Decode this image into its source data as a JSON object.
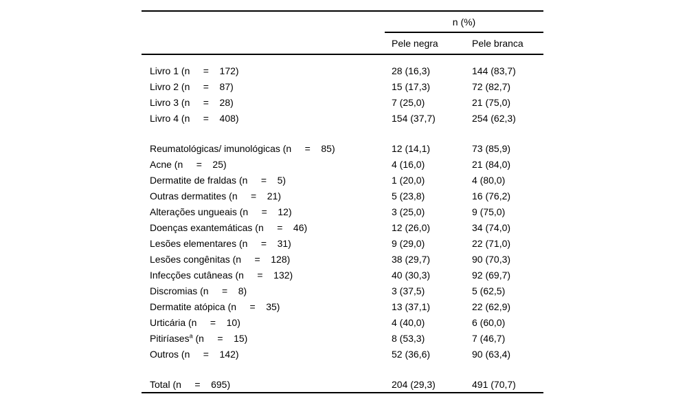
{
  "table": {
    "group_header": "n (%)",
    "columns": [
      "Pele negra",
      "Pele branca"
    ],
    "rows": [
      {
        "pre": "Livro 1 (n     =    172)",
        "sup": "",
        "post": "",
        "negra": "28 (16,3)",
        "branca": "144 (83,7)"
      },
      {
        "pre": "Livro 2 (n     =    87)",
        "sup": "",
        "post": "",
        "negra": "15 (17,3)",
        "branca": "72 (82,7)"
      },
      {
        "pre": "Livro 3 (n     =    28)",
        "sup": "",
        "post": "",
        "negra": "7 (25,0)",
        "branca": "21 (75,0)"
      },
      {
        "pre": "Livro 4 (n     =    408)",
        "sup": "",
        "post": "",
        "negra": "154 (37,7)",
        "branca": "254 (62,3)"
      },
      {
        "spacer": true
      },
      {
        "pre": "Reumatológicas/ imunológicas (n     =    85)",
        "sup": "",
        "post": "",
        "negra": "12 (14,1)",
        "branca": "73 (85,9)"
      },
      {
        "pre": "Acne (n     =    25)",
        "sup": "",
        "post": "",
        "negra": "4 (16,0)",
        "branca": "21 (84,0)"
      },
      {
        "pre": "Dermatite de fraldas (n     =    5)",
        "sup": "",
        "post": "",
        "negra": "1 (20,0)",
        "branca": "4 (80,0)"
      },
      {
        "pre": "Outras dermatites (n     =    21)",
        "sup": "",
        "post": "",
        "negra": "5 (23,8)",
        "branca": "16 (76,2)"
      },
      {
        "pre": "Alterações ungueais (n     =    12)",
        "sup": "",
        "post": "",
        "negra": "3 (25,0)",
        "branca": "9 (75,0)"
      },
      {
        "pre": "Doenças exantemáticas (n     =    46)",
        "sup": "",
        "post": "",
        "negra": "12 (26,0)",
        "branca": "34 (74,0)"
      },
      {
        "pre": "Lesões elementares (n     =    31)",
        "sup": "",
        "post": "",
        "negra": "9 (29,0)",
        "branca": "22 (71,0)"
      },
      {
        "pre": "Lesões congênitas (n     =    128)",
        "sup": "",
        "post": "",
        "negra": "38 (29,7)",
        "branca": "90 (70,3)"
      },
      {
        "pre": "Infecções cutâneas (n     =    132)",
        "sup": "",
        "post": "",
        "negra": "40 (30,3)",
        "branca": "92 (69,7)"
      },
      {
        "pre": "Discromias (n     =    8)",
        "sup": "",
        "post": "",
        "negra": "3 (37,5)",
        "branca": "5 (62,5)"
      },
      {
        "pre": "Dermatite atópica (n     =    35)",
        "sup": "",
        "post": "",
        "negra": "13 (37,1)",
        "branca": "22 (62,9)"
      },
      {
        "pre": "Urticária (n     =    10)",
        "sup": "",
        "post": "",
        "negra": "4 (40,0)",
        "branca": "6 (60,0)"
      },
      {
        "pre": "Pitiríases",
        "sup": "a",
        "post": " (n     =    15)",
        "negra": "8 (53,3)",
        "branca": "7 (46,7)"
      },
      {
        "pre": "Outros (n     =    142)",
        "sup": "",
        "post": "",
        "negra": "52 (36,6)",
        "branca": "90 (63,4)"
      },
      {
        "spacer": true
      },
      {
        "pre": "Total (n     =    695)",
        "sup": "",
        "post": "",
        "negra": "204 (29,3)",
        "branca": "491 (70,7)"
      }
    ]
  }
}
